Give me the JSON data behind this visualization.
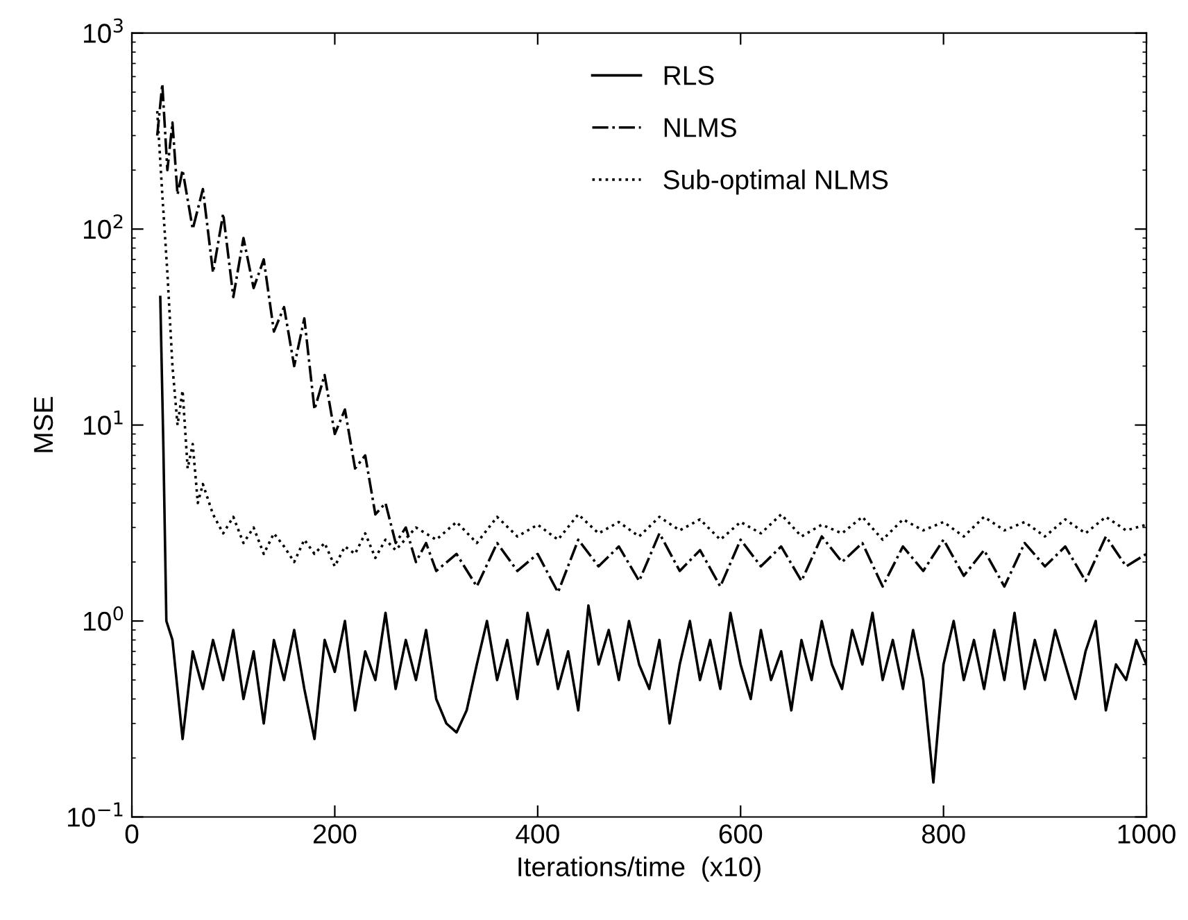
{
  "chart_data": {
    "type": "line",
    "xlabel": "Iterations/time  (x10)",
    "ylabel": "MSE",
    "log": "y",
    "xlim": [
      0,
      1000
    ],
    "xticks": [
      0,
      200,
      400,
      600,
      800,
      1000
    ],
    "ylim": [
      0.1,
      1000
    ],
    "yticks": [
      {
        "value": 0.1,
        "label": "10$^{−1}$"
      },
      {
        "value": 1,
        "label": "10$^{0}$"
      },
      {
        "value": 10,
        "label": "10$^{1}$"
      },
      {
        "value": 100,
        "label": "10$^{2}$"
      },
      {
        "value": 1000,
        "label": "10$^{3}$"
      }
    ],
    "grid": false,
    "legend": "top",
    "marker": "none",
    "series": [
      {
        "name": "RLS",
        "color": "#000000",
        "line_style": "solid",
        "x": [
          28,
          31,
          34,
          40,
          50,
          60,
          70,
          80,
          90,
          100,
          110,
          120,
          130,
          140,
          150,
          160,
          170,
          180,
          190,
          200,
          210,
          220,
          230,
          240,
          250,
          260,
          270,
          280,
          290,
          300,
          310,
          320,
          330,
          340,
          350,
          360,
          370,
          380,
          390,
          400,
          410,
          420,
          430,
          440,
          450,
          460,
          470,
          480,
          490,
          500,
          510,
          520,
          530,
          540,
          550,
          560,
          570,
          580,
          590,
          600,
          610,
          620,
          630,
          640,
          650,
          660,
          670,
          680,
          690,
          700,
          710,
          720,
          730,
          740,
          750,
          760,
          770,
          780,
          790,
          800,
          810,
          820,
          830,
          840,
          850,
          860,
          870,
          880,
          890,
          900,
          910,
          920,
          930,
          940,
          950,
          960,
          970,
          980,
          990,
          1000
        ],
        "values": [
          45,
          8,
          1.0,
          0.8,
          0.25,
          0.7,
          0.45,
          0.8,
          0.5,
          0.9,
          0.4,
          0.7,
          0.3,
          0.8,
          0.5,
          0.9,
          0.45,
          0.25,
          0.8,
          0.55,
          1.0,
          0.35,
          0.7,
          0.5,
          1.1,
          0.45,
          0.8,
          0.5,
          0.9,
          0.4,
          0.3,
          0.27,
          0.35,
          0.6,
          1.0,
          0.5,
          0.8,
          0.4,
          1.1,
          0.6,
          0.9,
          0.45,
          0.7,
          0.35,
          1.2,
          0.6,
          0.9,
          0.5,
          1.0,
          0.6,
          0.45,
          0.8,
          0.3,
          0.6,
          1.0,
          0.5,
          0.8,
          0.45,
          1.1,
          0.6,
          0.4,
          0.9,
          0.5,
          0.7,
          0.35,
          0.8,
          0.5,
          1.0,
          0.6,
          0.45,
          0.9,
          0.6,
          1.1,
          0.5,
          0.8,
          0.45,
          0.9,
          0.5,
          0.15,
          0.6,
          1.0,
          0.5,
          0.8,
          0.45,
          0.9,
          0.5,
          1.1,
          0.45,
          0.8,
          0.5,
          0.9,
          0.6,
          0.4,
          0.7,
          1.0,
          0.35,
          0.6,
          0.5,
          0.8,
          0.6
        ]
      },
      {
        "name": "NLMS",
        "color": "#000000",
        "line_style": "dashdot",
        "x": [
          25,
          30,
          35,
          40,
          45,
          50,
          60,
          70,
          80,
          90,
          100,
          110,
          120,
          130,
          140,
          150,
          160,
          170,
          180,
          190,
          200,
          210,
          220,
          230,
          240,
          250,
          260,
          270,
          280,
          290,
          300,
          320,
          340,
          360,
          380,
          400,
          420,
          440,
          460,
          480,
          500,
          520,
          540,
          560,
          580,
          600,
          620,
          640,
          660,
          680,
          700,
          720,
          740,
          760,
          780,
          800,
          820,
          840,
          860,
          880,
          900,
          920,
          940,
          960,
          980,
          1000
        ],
        "values": [
          300,
          550,
          200,
          350,
          150,
          200,
          100,
          160,
          60,
          120,
          45,
          90,
          50,
          70,
          30,
          40,
          20,
          35,
          12,
          18,
          9,
          12,
          6,
          7,
          3.5,
          4,
          2.5,
          3,
          2,
          2.5,
          1.8,
          2.2,
          1.5,
          2.5,
          1.8,
          2.2,
          1.4,
          2.6,
          1.9,
          2.4,
          1.6,
          2.8,
          1.8,
          2.3,
          1.5,
          2.6,
          1.9,
          2.4,
          1.6,
          2.7,
          2.0,
          2.5,
          1.5,
          2.4,
          1.8,
          2.6,
          1.7,
          2.3,
          1.5,
          2.5,
          1.9,
          2.4,
          1.6,
          2.7,
          1.9,
          2.2
        ]
      },
      {
        "name": "Sub-optimal NLMS",
        "color": "#000000",
        "line_style": "dotted",
        "x": [
          25,
          30,
          35,
          40,
          45,
          50,
          55,
          60,
          65,
          70,
          80,
          90,
          100,
          110,
          120,
          130,
          140,
          150,
          160,
          170,
          180,
          190,
          200,
          210,
          220,
          230,
          240,
          250,
          260,
          280,
          300,
          320,
          340,
          360,
          380,
          400,
          420,
          440,
          460,
          480,
          500,
          520,
          540,
          560,
          580,
          600,
          620,
          640,
          660,
          680,
          700,
          720,
          740,
          760,
          780,
          800,
          820,
          840,
          860,
          880,
          900,
          920,
          940,
          960,
          980,
          1000
        ],
        "values": [
          400,
          150,
          60,
          20,
          10,
          15,
          6,
          8,
          4,
          5,
          3.5,
          2.8,
          3.4,
          2.5,
          3.0,
          2.2,
          2.8,
          2.4,
          2.0,
          2.6,
          2.2,
          2.5,
          1.9,
          2.4,
          2.2,
          2.8,
          2.1,
          2.6,
          2.3,
          3.0,
          2.6,
          3.2,
          2.5,
          3.4,
          2.7,
          3.1,
          2.6,
          3.5,
          2.8,
          3.2,
          2.7,
          3.4,
          2.9,
          3.3,
          2.6,
          3.2,
          2.8,
          3.5,
          2.7,
          3.1,
          2.8,
          3.4,
          2.6,
          3.3,
          2.9,
          3.2,
          2.7,
          3.4,
          2.9,
          3.2,
          2.7,
          3.3,
          2.8,
          3.4,
          2.9,
          3.1
        ]
      }
    ]
  }
}
